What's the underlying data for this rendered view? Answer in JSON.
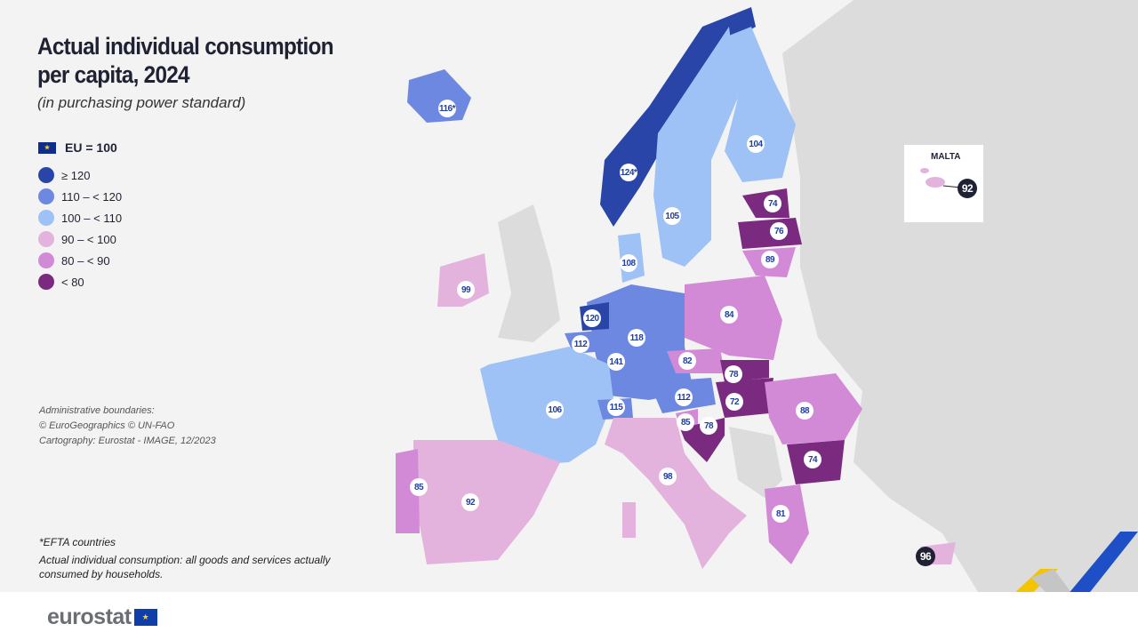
{
  "header": {
    "title_line1": "Actual individual consumption",
    "title_line2": "per capita, 2024",
    "subtitle": "(in purchasing power standard)"
  },
  "legend": {
    "reference": "EU = 100",
    "classes": [
      {
        "label": "≥ 120",
        "color": "#2a45a8"
      },
      {
        "label": "110 – < 120",
        "color": "#6d88e0"
      },
      {
        "label": "100 – < 110",
        "color": "#9ec2f5"
      },
      {
        "label": "90 – < 100",
        "color": "#e3b3de"
      },
      {
        "label": "80 – < 90",
        "color": "#d38ad6"
      },
      {
        "label": "< 80",
        "color": "#7a2a7f"
      }
    ]
  },
  "credits": {
    "line1": "Administrative boundaries:",
    "line2": "© EuroGeographics  © UN-FAO",
    "line3": "Cartography: Eurostat - IMAGE, 12/2023"
  },
  "notes": {
    "efta": "*EFTA countries",
    "definition": "Actual individual consumption: all goods and services actually consumed by households."
  },
  "inset": {
    "title": "MALTA",
    "value": "92"
  },
  "countries": {
    "IS": "116*",
    "NO": "124*",
    "SE": "105",
    "FI": "104",
    "EE": "74",
    "LV": "76",
    "LT": "89",
    "DK": "108",
    "IE": "99",
    "NL": "120",
    "BE": "112",
    "LU": "141",
    "DE": "118",
    "PL": "84",
    "CZ": "82",
    "SK": "78",
    "HU": "72",
    "AT": "112",
    "CH": "115",
    "SI": "85",
    "HR": "78",
    "RO": "88",
    "BG": "74",
    "FR": "106",
    "IT": "98",
    "ES": "92",
    "PT": "85",
    "EL": "81",
    "CY": "96"
  },
  "footer": {
    "logo": "eurostat"
  }
}
